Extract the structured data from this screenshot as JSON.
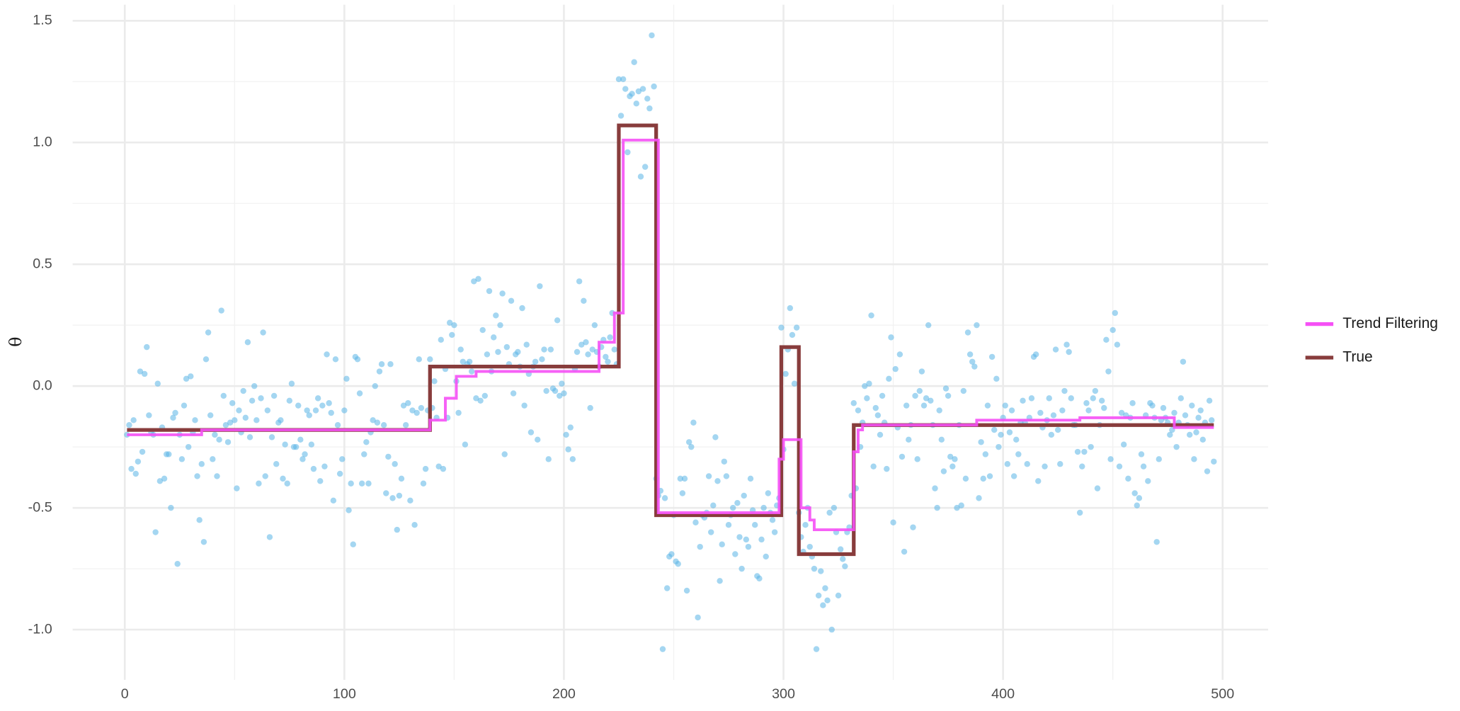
{
  "chart_data": {
    "type": "line",
    "y_label": "θ",
    "legend": "right",
    "grid": true,
    "minor_grid": true,
    "xlim": [
      -23.75,
      520.75
    ],
    "ylim": [
      -1.206,
      1.566
    ],
    "xticks": [
      0,
      100,
      200,
      300,
      400,
      500
    ],
    "yticks": [
      {
        "value": -1,
        "label": "-1.0"
      },
      {
        "value": -0.5,
        "label": "-0.5"
      },
      {
        "value": 0,
        "label": "0.0"
      },
      {
        "value": 0.5,
        "label": "0.5"
      },
      {
        "value": 1,
        "label": "1.0"
      },
      {
        "value": 1.5,
        "label": "1.5"
      }
    ],
    "points": {
      "color": "#5ab4e5",
      "x": [
        1,
        2,
        3,
        4,
        5,
        6,
        7,
        8,
        9,
        10,
        11,
        12,
        13,
        14,
        15,
        16,
        17,
        18,
        19,
        20,
        21,
        22,
        23,
        24,
        25,
        26,
        27,
        28,
        29,
        30,
        31,
        32,
        33,
        34,
        35,
        36,
        37,
        38,
        39,
        40,
        41,
        42,
        43,
        44,
        45,
        46,
        47,
        48,
        49,
        50,
        51,
        52,
        53,
        54,
        55,
        56,
        57,
        58,
        59,
        60,
        61,
        62,
        63,
        64,
        65,
        66,
        67,
        68,
        69,
        70,
        71,
        72,
        73,
        74,
        75,
        76,
        77,
        78,
        79,
        80,
        81,
        82,
        83,
        84,
        85,
        86,
        87,
        88,
        89,
        90,
        91,
        92,
        93,
        94,
        95,
        96,
        97,
        98,
        99,
        100,
        101,
        102,
        103,
        104,
        105,
        106,
        107,
        108,
        109,
        110,
        111,
        112,
        113,
        114,
        115,
        116,
        117,
        118,
        119,
        120,
        121,
        122,
        123,
        124,
        125,
        126,
        127,
        128,
        129,
        130,
        131,
        132,
        133,
        134,
        135,
        136,
        137,
        138,
        139,
        140,
        141,
        142,
        143,
        144,
        145,
        146,
        147,
        148,
        149,
        150,
        151,
        152,
        153,
        154,
        155,
        156,
        157,
        158,
        159,
        160,
        161,
        162,
        163,
        164,
        165,
        166,
        167,
        168,
        169,
        170,
        171,
        172,
        173,
        174,
        175,
        176,
        177,
        178,
        179,
        180,
        181,
        182,
        183,
        184,
        185,
        186,
        187,
        188,
        189,
        190,
        191,
        192,
        193,
        194,
        195,
        196,
        197,
        198,
        199,
        200,
        201,
        202,
        203,
        204,
        205,
        206,
        207,
        208,
        209,
        210,
        211,
        212,
        213,
        214,
        215,
        216,
        217,
        218,
        219,
        220,
        221,
        222,
        223,
        224,
        225,
        226,
        227,
        228,
        229,
        230,
        231,
        232,
        233,
        234,
        235,
        236,
        237,
        238,
        239,
        240,
        241,
        242,
        243,
        244,
        245,
        246,
        247,
        248,
        249,
        250,
        251,
        252,
        253,
        254,
        255,
        256,
        257,
        258,
        259,
        260,
        261,
        262,
        263,
        264,
        265,
        266,
        267,
        268,
        269,
        270,
        271,
        272,
        273,
        274,
        275,
        276,
        277,
        278,
        279,
        280,
        281,
        282,
        283,
        284,
        285,
        286,
        287,
        288,
        289,
        290,
        291,
        292,
        293,
        294,
        295,
        296,
        297,
        298,
        299,
        300,
        301,
        302,
        303,
        304,
        305,
        306,
        307,
        308,
        309,
        310,
        311,
        312,
        313,
        314,
        315,
        316,
        317,
        318,
        319,
        320,
        321,
        322,
        323,
        324,
        325,
        326,
        327,
        328,
        329,
        330,
        331,
        332,
        333,
        334,
        335,
        336,
        337,
        338,
        339,
        340,
        341,
        342,
        343,
        344,
        345,
        346,
        347,
        348,
        349,
        350,
        351,
        352,
        353,
        354,
        355,
        356,
        357,
        358,
        359,
        360,
        361,
        362,
        363,
        364,
        365,
        366,
        367,
        368,
        369,
        370,
        371,
        372,
        373,
        374,
        375,
        376,
        377,
        378,
        379,
        380,
        381,
        382,
        383,
        384,
        385,
        386,
        387,
        388,
        389,
        390,
        391,
        392,
        393,
        394,
        395,
        396,
        397,
        398,
        399,
        400,
        401,
        402,
        403,
        404,
        405,
        406,
        407,
        408,
        409,
        410,
        411,
        412,
        413,
        414,
        415,
        416,
        417,
        418,
        419,
        420,
        421,
        422,
        423,
        424,
        425,
        426,
        427,
        428,
        429,
        430,
        431,
        432,
        433,
        434,
        435,
        436,
        437,
        438,
        439,
        440,
        441,
        442,
        443,
        444,
        445,
        446,
        447,
        448,
        449,
        450,
        451,
        452,
        453,
        454,
        455,
        456,
        457,
        458,
        459,
        460,
        461,
        462,
        463,
        464,
        465,
        466,
        467,
        468,
        469,
        470,
        471,
        472,
        473,
        474,
        475,
        476,
        477,
        478,
        479,
        480,
        481,
        482,
        483,
        484,
        485,
        486,
        487,
        488,
        489,
        490,
        491,
        492,
        493,
        494,
        495,
        496
      ],
      "values": [
        -0.2,
        -0.16,
        -0.34,
        -0.14,
        -0.36,
        -0.31,
        0.06,
        -0.27,
        0.05,
        0.16,
        -0.12,
        -0.19,
        -0.2,
        -0.6,
        0.01,
        -0.39,
        -0.17,
        -0.38,
        -0.28,
        -0.28,
        -0.5,
        -0.13,
        -0.11,
        -0.73,
        -0.2,
        -0.3,
        -0.08,
        0.03,
        -0.25,
        0.04,
        -0.19,
        -0.14,
        -0.37,
        -0.55,
        -0.32,
        -0.64,
        0.11,
        0.22,
        -0.12,
        -0.3,
        -0.2,
        -0.37,
        -0.22,
        0.31,
        -0.04,
        -0.16,
        -0.23,
        -0.15,
        -0.07,
        -0.14,
        -0.42,
        -0.1,
        -0.19,
        -0.02,
        -0.13,
        0.18,
        -0.21,
        -0.06,
        0,
        -0.14,
        -0.4,
        -0.05,
        0.22,
        -0.37,
        -0.1,
        -0.62,
        -0.21,
        -0.04,
        -0.32,
        -0.15,
        -0.14,
        -0.38,
        -0.24,
        -0.4,
        -0.06,
        0.01,
        -0.25,
        -0.25,
        -0.08,
        -0.22,
        -0.3,
        -0.28,
        -0.1,
        -0.12,
        -0.24,
        -0.34,
        -0.1,
        -0.05,
        -0.39,
        -0.08,
        -0.33,
        0.13,
        -0.07,
        -0.11,
        -0.47,
        0.11,
        -0.16,
        -0.36,
        -0.3,
        -0.1,
        0.03,
        -0.51,
        -0.4,
        -0.65,
        0.12,
        0.11,
        -0.03,
        -0.4,
        -0.28,
        -0.23,
        -0.4,
        -0.19,
        -0.14,
        0,
        -0.15,
        0.06,
        0.09,
        -0.16,
        -0.44,
        -0.29,
        0.09,
        -0.46,
        -0.32,
        -0.59,
        -0.45,
        -0.38,
        -0.08,
        -0.16,
        -0.07,
        -0.47,
        -0.1,
        -0.57,
        -0.11,
        0.11,
        -0.09,
        -0.4,
        -0.34,
        -0.1,
        0.11,
        -0.09,
        0.02,
        -0.13,
        -0.33,
        0.19,
        -0.34,
        0.07,
        -0.13,
        0.26,
        0.21,
        0.25,
        0.02,
        -0.11,
        0.15,
        0.1,
        -0.24,
        0.09,
        0.1,
        0.06,
        0.43,
        -0.05,
        0.44,
        -0.06,
        0.23,
        -0.04,
        0.13,
        0.39,
        0.06,
        0.2,
        0.29,
        0.14,
        0.25,
        0.38,
        -0.28,
        0.16,
        0.09,
        0.35,
        -0.03,
        0.13,
        0.14,
        0.08,
        0.32,
        -0.08,
        0.17,
        0.05,
        -0.19,
        0.08,
        0.1,
        -0.22,
        0.41,
        0.11,
        0.15,
        -0.02,
        -0.3,
        0.15,
        -0.01,
        -0.02,
        0.27,
        -0.04,
        0.01,
        -0.03,
        -0.2,
        -0.26,
        -0.17,
        -0.3,
        0.07,
        0.14,
        0.43,
        0.17,
        0.35,
        0.18,
        0.13,
        -0.09,
        0.15,
        0.25,
        0.14,
        0.08,
        0.16,
        0.19,
        0.12,
        0.1,
        0.2,
        0.3,
        0.15,
        0.09,
        1.26,
        1.11,
        1.26,
        1.22,
        0.96,
        1.19,
        1.2,
        1.33,
        1.16,
        1.21,
        0.86,
        1.22,
        0.9,
        1.18,
        1.14,
        1.44,
        1.23,
        -0.38,
        -0.45,
        -0.43,
        -1.08,
        -0.46,
        -0.83,
        -0.7,
        -0.69,
        -0.53,
        -0.72,
        -0.73,
        -0.38,
        -0.44,
        -0.38,
        -0.84,
        -0.23,
        -0.25,
        -0.15,
        -0.56,
        -0.95,
        -0.66,
        -0.53,
        -0.54,
        -0.52,
        -0.37,
        -0.6,
        -0.49,
        -0.21,
        -0.39,
        -0.8,
        -0.65,
        -0.31,
        -0.37,
        -0.57,
        -0.53,
        -0.5,
        -0.69,
        -0.48,
        -0.62,
        -0.75,
        -0.45,
        -0.63,
        -0.66,
        -0.38,
        -0.51,
        -0.57,
        -0.78,
        -0.79,
        -0.63,
        -0.5,
        -0.7,
        -0.44,
        -0.52,
        -0.55,
        -0.6,
        -0.49,
        -0.46,
        0.24,
        -0.26,
        0.05,
        0.15,
        0.32,
        0.21,
        0.01,
        0.24,
        -0.52,
        -0.62,
        -0.68,
        -0.57,
        -0.5,
        -0.66,
        -0.7,
        -0.75,
        -1.08,
        -0.86,
        -0.76,
        -0.9,
        -0.83,
        -0.88,
        -0.52,
        -1.0,
        -0.5,
        -0.6,
        -0.86,
        -0.67,
        -0.71,
        -0.74,
        -0.6,
        -0.58,
        -0.45,
        -0.07,
        -0.42,
        -0.1,
        -0.25,
        -0.15,
        0,
        -0.05,
        0.01,
        0.29,
        -0.33,
        -0.09,
        -0.12,
        -0.2,
        -0.04,
        -0.15,
        -0.34,
        0.03,
        0.2,
        -0.56,
        0.07,
        -0.17,
        0.13,
        -0.29,
        -0.68,
        -0.08,
        -0.22,
        -0.16,
        -0.58,
        -0.04,
        -0.3,
        -0.02,
        0.06,
        -0.08,
        -0.05,
        0.25,
        -0.06,
        -0.16,
        -0.42,
        -0.5,
        -0.1,
        -0.22,
        -0.35,
        -0.01,
        -0.04,
        -0.29,
        -0.33,
        -0.3,
        -0.5,
        -0.16,
        -0.49,
        -0.02,
        -0.38,
        0.22,
        0.13,
        0.1,
        0.08,
        0.25,
        -0.46,
        -0.23,
        -0.38,
        -0.28,
        -0.08,
        -0.37,
        0.12,
        -0.18,
        0.03,
        -0.25,
        -0.2,
        -0.13,
        -0.08,
        -0.32,
        -0.19,
        -0.1,
        -0.37,
        -0.22,
        -0.28,
        -0.15,
        -0.06,
        -0.15,
        -0.32,
        -0.13,
        -0.05,
        0.12,
        0.13,
        -0.39,
        -0.11,
        -0.17,
        -0.33,
        -0.14,
        -0.05,
        -0.2,
        -0.12,
        0.15,
        -0.18,
        -0.32,
        -0.1,
        -0.02,
        0.17,
        0.14,
        -0.05,
        -0.16,
        -0.16,
        -0.27,
        -0.52,
        -0.33,
        -0.27,
        -0.07,
        -0.1,
        -0.25,
        -0.05,
        -0.02,
        -0.42,
        -0.16,
        -0.06,
        -0.09,
        0.19,
        0.06,
        -0.3,
        0.23,
        0.3,
        0.17,
        -0.33,
        -0.11,
        -0.24,
        -0.12,
        -0.38,
        -0.13,
        -0.07,
        -0.44,
        -0.49,
        -0.46,
        -0.28,
        -0.33,
        -0.12,
        -0.39,
        -0.07,
        -0.08,
        -0.13,
        -0.64,
        -0.3,
        -0.14,
        -0.09,
        -0.13,
        -0.15,
        -0.2,
        -0.18,
        -0.11,
        -0.25,
        -0.15,
        -0.05,
        0.1,
        -0.12,
        -0.16,
        -0.2,
        -0.08,
        -0.3,
        -0.19,
        -0.13,
        -0.1,
        -0.22,
        -0.15,
        -0.35,
        -0.06,
        -0.14,
        -0.31
      ]
    },
    "series": [
      {
        "name": "Trend Filtering",
        "color": "#f550f5",
        "step": "post",
        "x": [
          1,
          35,
          139,
          146,
          151,
          160,
          216,
          223,
          227,
          243,
          298,
          300,
          308,
          312,
          314,
          332,
          334,
          336,
          388,
          435,
          478,
          496
        ],
        "values": [
          -0.2,
          -0.18,
          -0.14,
          -0.05,
          0.04,
          0.06,
          0.18,
          0.3,
          1.01,
          -0.52,
          -0.3,
          -0.22,
          -0.5,
          -0.55,
          -0.59,
          -0.27,
          -0.18,
          -0.16,
          -0.14,
          -0.13,
          -0.17,
          -0.17
        ]
      },
      {
        "name": "True",
        "color": "#883c3c",
        "step": "post",
        "x": [
          1,
          139,
          225,
          242,
          299,
          307,
          332,
          496
        ],
        "values": [
          -0.18,
          0.08,
          1.07,
          -0.53,
          0.16,
          -0.69,
          -0.16,
          -0.16
        ]
      }
    ]
  }
}
